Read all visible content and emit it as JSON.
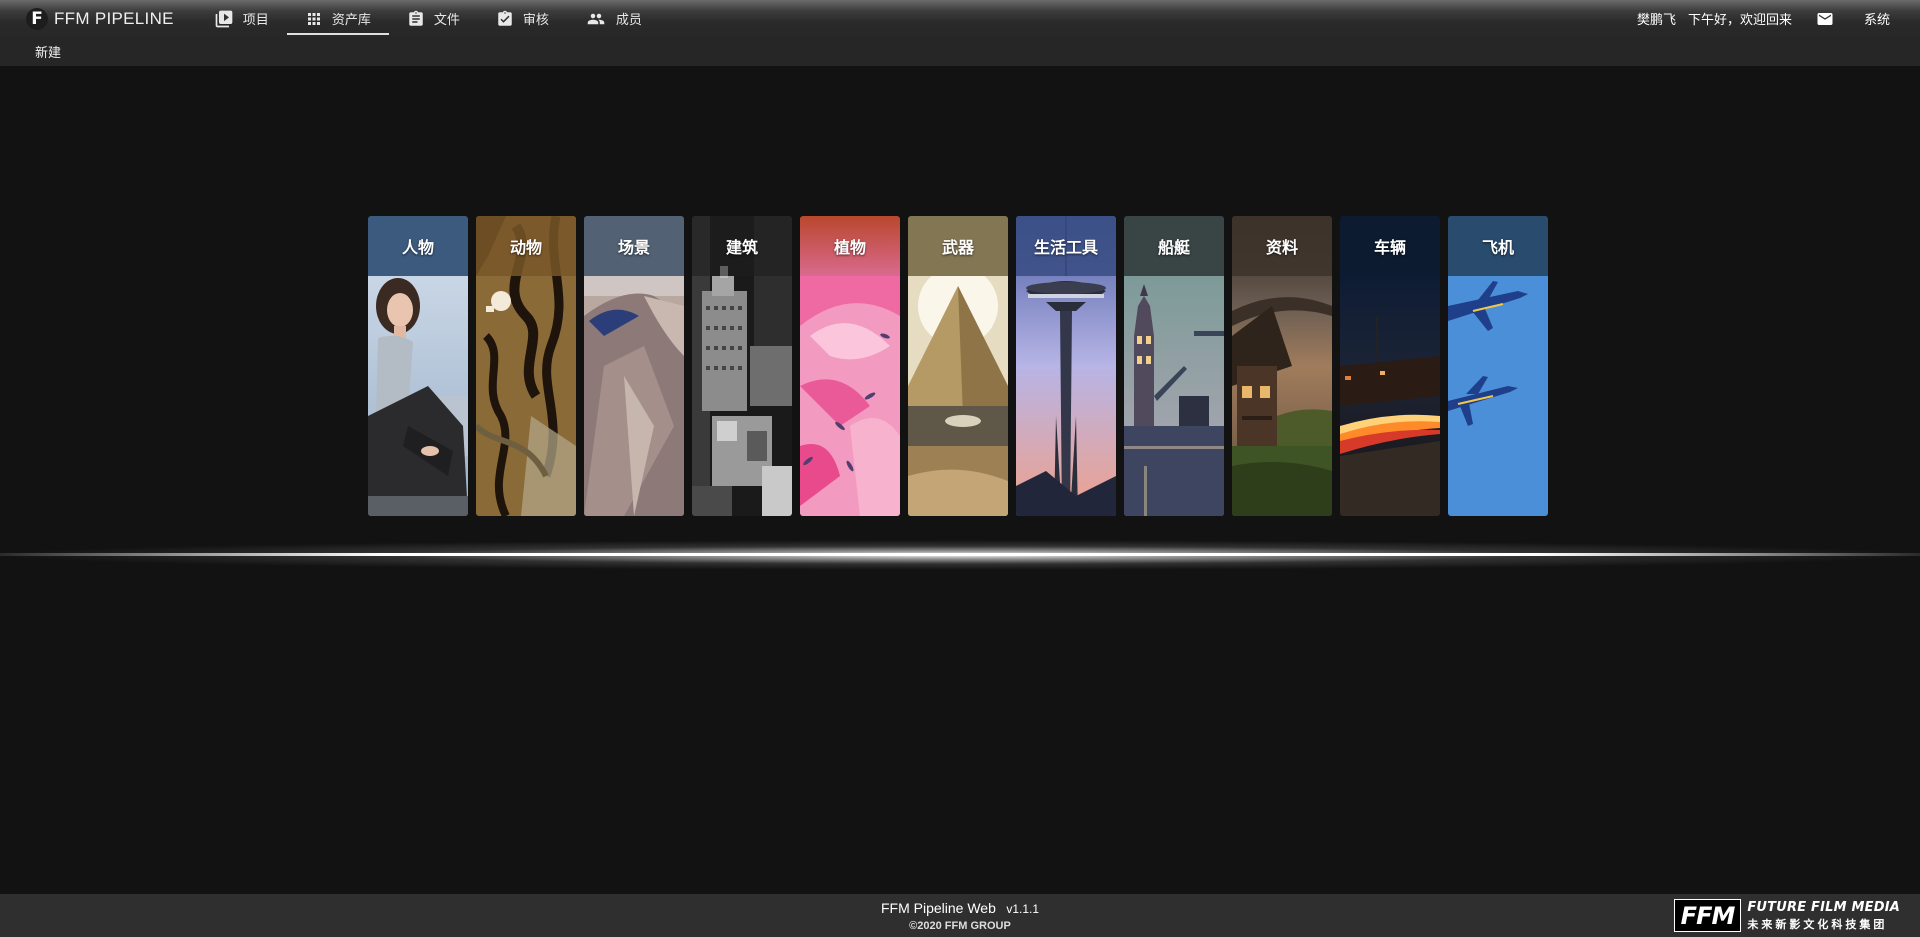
{
  "brand": {
    "logo_letter": "F",
    "name": "FFM PIPELINE"
  },
  "nav": {
    "items": [
      {
        "label": "项目",
        "icon": "video-library-icon",
        "active": false
      },
      {
        "label": "资产库",
        "icon": "grid-apps-icon",
        "active": true
      },
      {
        "label": "文件",
        "icon": "clipboard-icon",
        "active": false
      },
      {
        "label": "审核",
        "icon": "clipboard-check-icon",
        "active": false
      },
      {
        "label": "成员",
        "icon": "people-icon",
        "active": false
      }
    ]
  },
  "user": {
    "name": "樊鹏飞",
    "greeting": "下午好，欢迎回来",
    "mail_icon": "mail-icon",
    "system_label": "系统"
  },
  "subbar": {
    "new_label": "新建"
  },
  "categories": [
    {
      "label": "人物",
      "head_color": "#3b5a7e",
      "icon": "person-photo"
    },
    {
      "label": "动物",
      "head_color": "#7a5a2a",
      "icon": "tiger-fur-photo"
    },
    {
      "label": "场景",
      "head_color": "#5c6a7f",
      "icon": "desert-dune-photo"
    },
    {
      "label": "建筑",
      "head_color": "#2f2f2f",
      "icon": "skyscraper-photo"
    },
    {
      "label": "植物",
      "head_color": "#c2566f",
      "icon": "pink-flower-photo"
    },
    {
      "label": "武器",
      "head_color": "#8a7c56",
      "icon": "pyramid-photo"
    },
    {
      "label": "生活工具",
      "head_color": "#3b4f85",
      "icon": "space-needle-photo"
    },
    {
      "label": "船艇",
      "head_color": "#3e4a4a",
      "icon": "tower-bridge-photo"
    },
    {
      "label": "资料",
      "head_color": "#3e342b",
      "icon": "cabin-photo"
    },
    {
      "label": "车辆",
      "head_color": "#0e1c33",
      "icon": "light-trail-photo"
    },
    {
      "label": "飞机",
      "head_color": "#2b4f73",
      "icon": "jets-photo"
    }
  ],
  "footer": {
    "title": "FFM Pipeline Web",
    "version": "v1.1.1",
    "copyright": "©2020 FFM GROUP",
    "logo_mark": "FFM",
    "logo_en": "FUTURE FILM MEDIA",
    "logo_cn": "未来新影文化科技集团"
  }
}
